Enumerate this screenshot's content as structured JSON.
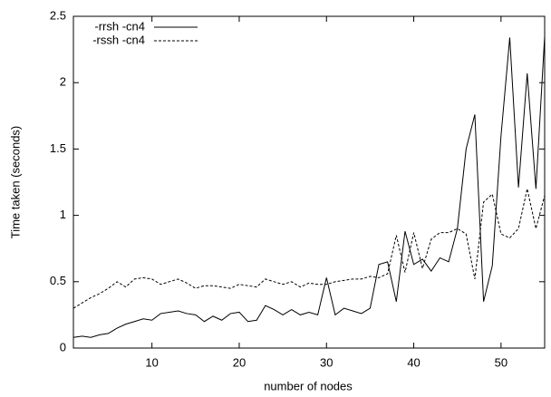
{
  "chart_data": {
    "type": "line",
    "x_label": "number of nodes",
    "y_label": "Time taken (seconds)",
    "x": [
      1,
      2,
      3,
      4,
      5,
      6,
      7,
      8,
      9,
      10,
      11,
      12,
      13,
      14,
      15,
      16,
      17,
      18,
      19,
      20,
      21,
      22,
      23,
      24,
      25,
      26,
      27,
      28,
      29,
      30,
      31,
      32,
      33,
      34,
      35,
      36,
      37,
      38,
      39,
      40,
      41,
      42,
      43,
      44,
      45,
      46,
      47,
      48,
      49,
      50,
      51,
      52,
      53,
      54,
      55
    ],
    "series": [
      {
        "name": "-rrsh -cn4",
        "color": "#000000",
        "dash": "solid",
        "values": [
          0.08,
          0.09,
          0.08,
          0.1,
          0.11,
          0.15,
          0.18,
          0.2,
          0.22,
          0.21,
          0.26,
          0.27,
          0.28,
          0.26,
          0.25,
          0.2,
          0.24,
          0.21,
          0.26,
          0.27,
          0.2,
          0.21,
          0.32,
          0.29,
          0.25,
          0.29,
          0.25,
          0.27,
          0.25,
          0.53,
          0.25,
          0.3,
          0.28,
          0.26,
          0.3,
          0.63,
          0.65,
          0.35,
          0.88,
          0.63,
          0.67,
          0.58,
          0.68,
          0.65,
          0.9,
          1.5,
          1.76,
          0.35,
          0.62,
          1.6,
          2.34,
          1.21,
          2.07,
          1.2,
          2.35
        ]
      },
      {
        "name": "-rssh -cn4",
        "color": "#000000",
        "dash": "dashed",
        "values": [
          0.3,
          0.34,
          0.38,
          0.41,
          0.45,
          0.5,
          0.46,
          0.52,
          0.53,
          0.52,
          0.48,
          0.5,
          0.52,
          0.49,
          0.45,
          0.47,
          0.47,
          0.46,
          0.45,
          0.48,
          0.47,
          0.46,
          0.52,
          0.5,
          0.48,
          0.5,
          0.46,
          0.49,
          0.48,
          0.48,
          0.5,
          0.51,
          0.52,
          0.52,
          0.54,
          0.53,
          0.56,
          0.85,
          0.57,
          0.87,
          0.6,
          0.82,
          0.87,
          0.87,
          0.9,
          0.86,
          0.52,
          1.1,
          1.16,
          0.86,
          0.83,
          0.9,
          1.2,
          0.9,
          1.15
        ]
      }
    ],
    "xlim": [
      1,
      55
    ],
    "xticks": [
      10,
      20,
      30,
      40,
      50
    ],
    "ylim": [
      0,
      2.5
    ],
    "yticks": [
      0,
      {
        "value": 0.5,
        "label": "0.5"
      },
      1,
      {
        "value": 1.5,
        "label": "1.5"
      },
      2,
      {
        "value": 2.5,
        "label": "2.5"
      }
    ],
    "grid": false,
    "legend": "top-left"
  }
}
